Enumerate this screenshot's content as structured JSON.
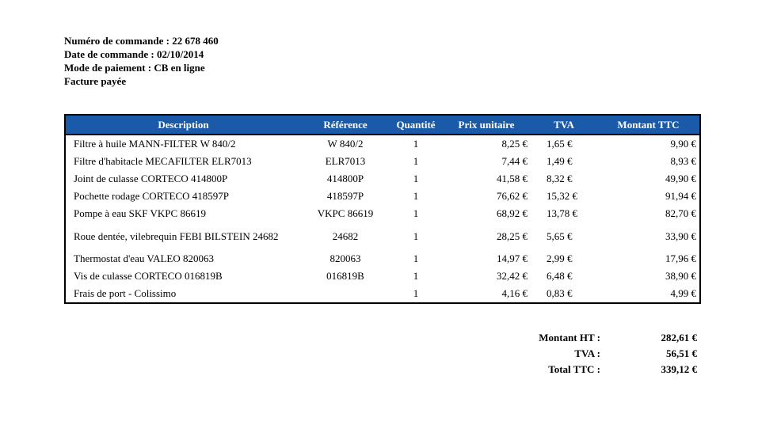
{
  "order": {
    "number_line": "Numéro de commande : 22 678 460",
    "date_line": "Date de commande : 02/10/2014",
    "payment_line": "Mode de paiement : CB en ligne",
    "status_line": "Facture payée"
  },
  "table": {
    "headers": {
      "description": "Description",
      "reference": "Référence",
      "quantity": "Quantité",
      "unit_price": "Prix unitaire",
      "tva": "TVA",
      "total_ttc": "Montant TTC"
    },
    "header_color": "#1a5aa8",
    "rows": [
      {
        "description": "Filtre à huile MANN-FILTER W 840/2",
        "reference": "W 840/2",
        "quantity": "1",
        "unit_price": "8,25 €",
        "tva": "1,65 €",
        "total_ttc": "9,90 €"
      },
      {
        "description": "Filtre d'habitacle MECAFILTER ELR7013",
        "reference": "ELR7013",
        "quantity": "1",
        "unit_price": "7,44 €",
        "tva": "1,49 €",
        "total_ttc": "8,93 €"
      },
      {
        "description": "Joint de culasse CORTECO 414800P",
        "reference": "414800P",
        "quantity": "1",
        "unit_price": "41,58 €",
        "tva": "8,32 €",
        "total_ttc": "49,90 €"
      },
      {
        "description": "Pochette rodage CORTECO 418597P",
        "reference": "418597P",
        "quantity": "1",
        "unit_price": "76,62 €",
        "tva": "15,32 €",
        "total_ttc": "91,94 €"
      },
      {
        "description": "Pompe à eau SKF VKPC 86619",
        "reference": "VKPC 86619",
        "quantity": "1",
        "unit_price": "68,92 €",
        "tva": "13,78 €",
        "total_ttc": "82,70 €"
      },
      {
        "description": "Roue dentée, vilebrequin FEBI BILSTEIN 24682",
        "reference": "24682",
        "quantity": "1",
        "unit_price": "28,25 €",
        "tva": "5,65 €",
        "total_ttc": "33,90 €"
      },
      {
        "description": "Thermostat d'eau VALEO 820063",
        "reference": "820063",
        "quantity": "1",
        "unit_price": "14,97 €",
        "tva": "2,99 €",
        "total_ttc": "17,96 €"
      },
      {
        "description": "Vis de culasse CORTECO 016819B",
        "reference": "016819B",
        "quantity": "1",
        "unit_price": "32,42 €",
        "tva": "6,48 €",
        "total_ttc": "38,90 €"
      },
      {
        "description": "Frais de port - Colissimo",
        "reference": "",
        "quantity": "1",
        "unit_price": "4,16 €",
        "tva": "0,83 €",
        "total_ttc": "4,99 €"
      }
    ]
  },
  "totals": {
    "ht_label": "Montant HT :",
    "ht_value": "282,61 €",
    "tva_label": "TVA :",
    "tva_value": "56,51 €",
    "ttc_label": "Total TTC :",
    "ttc_value": "339,12 €"
  }
}
